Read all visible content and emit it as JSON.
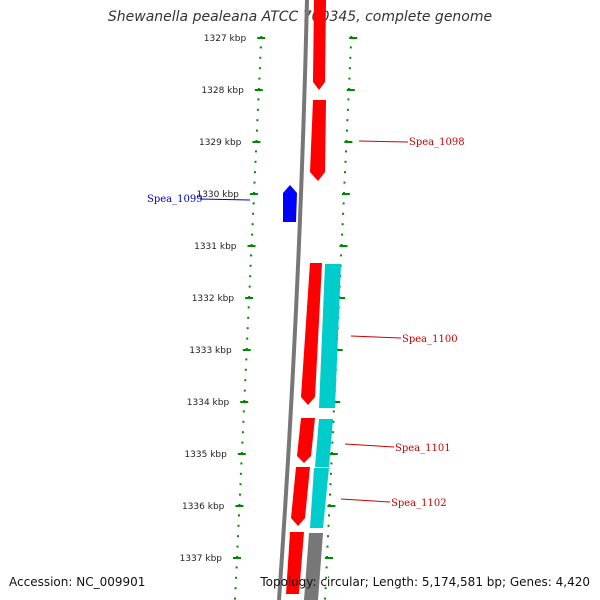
{
  "title": "Shewanella pealeana ATCC 700345, complete genome",
  "footer": {
    "accession": "Accession: NC_009901",
    "summary": "Topology: circular; Length: 5,174,581 bp; Genes: 4,420"
  },
  "axis_labels": [
    "1327 kbp",
    "1328 kbp",
    "1329 kbp",
    "1330 kbp",
    "1331 kbp",
    "1332 kbp",
    "1333 kbp",
    "1334 kbp",
    "1335 kbp",
    "1336 kbp",
    "1337 kbp"
  ],
  "genes": [
    {
      "label": "",
      "strand": "forward",
      "color": "#ff0000"
    },
    {
      "label": "Spea_1098",
      "strand": "forward",
      "color": "#ff0000",
      "label_color": "#cc0000"
    },
    {
      "label": "Spea_1099",
      "strand": "reverse",
      "color": "#0000ff",
      "label_color": "#0000cc"
    },
    {
      "label": "Spea_1100",
      "strand": "forward",
      "color": "#ff0000",
      "label_color": "#cc0000"
    },
    {
      "label": "",
      "strand": "forward-outer",
      "color": "#00cccc"
    },
    {
      "label": "Spea_1101",
      "strand": "forward",
      "color": "#ff0000",
      "label_color": "#cc0000"
    },
    {
      "label": "",
      "strand": "forward-outer",
      "color": "#00cccc"
    },
    {
      "label": "Spea_1102",
      "strand": "forward",
      "color": "#ff0000",
      "label_color": "#cc0000"
    },
    {
      "label": "",
      "strand": "forward-outer",
      "color": "#00cccc"
    },
    {
      "label": "",
      "strand": "forward",
      "color": "#ff0000"
    },
    {
      "label": "",
      "strand": "forward-outer",
      "color": "#777777"
    }
  ],
  "colors": {
    "backbone": "#777777",
    "ticks": "#008800",
    "forward_cds": "#ff0000",
    "reverse_cds": "#0000ff",
    "other_feature": "#00cccc"
  }
}
